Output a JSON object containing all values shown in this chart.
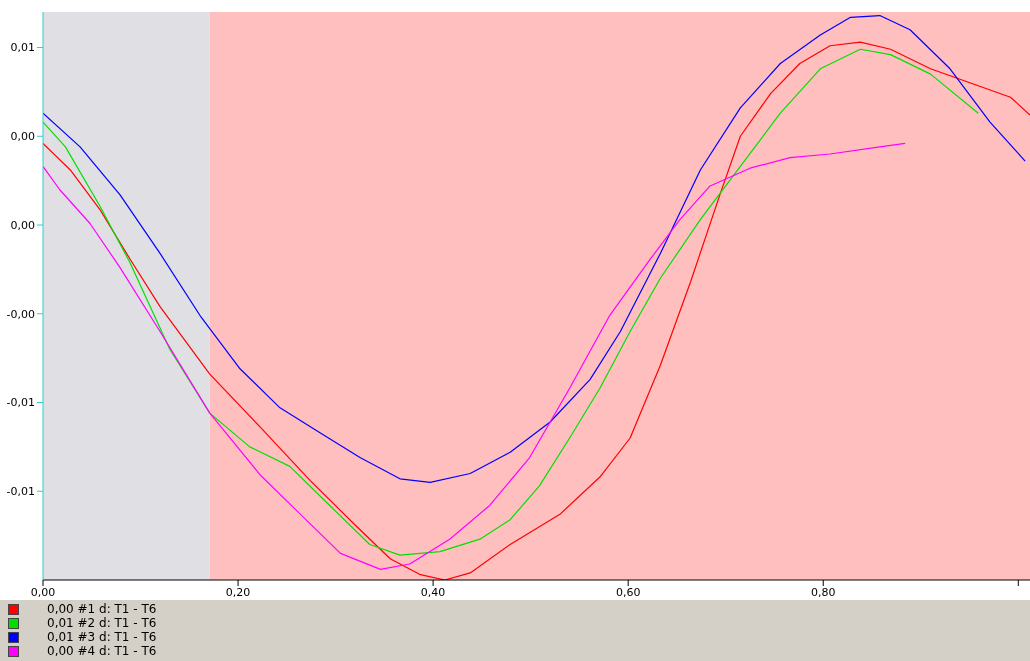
{
  "chart_data": {
    "type": "line",
    "xlim": [
      0,
      1.012
    ],
    "ylim": [
      -0.02,
      0.012
    ],
    "xticks": [
      {
        "value": 0,
        "label": "0,00"
      },
      {
        "value": 0.2,
        "label": "0,20"
      },
      {
        "value": 0.4,
        "label": "0,40"
      },
      {
        "value": 0.6,
        "label": "0,60"
      },
      {
        "value": 0.8,
        "label": "0,80"
      },
      {
        "value": 1,
        "label": null
      }
    ],
    "yticks": [
      {
        "value": 0.01,
        "label": "0,01"
      },
      {
        "value": 0.005,
        "label": "0,00"
      },
      {
        "value": 0,
        "label": "0,00"
      },
      {
        "value": -0.005,
        "label": "-0,00"
      },
      {
        "value": -0.01,
        "label": "-0,01"
      },
      {
        "value": -0.015,
        "label": "-0,01"
      }
    ],
    "grid": false,
    "legend": "bottom left",
    "marker": "none",
    "line_style": "solid",
    "bands": [
      {
        "axis": "x",
        "from": 0,
        "to": 0.171,
        "color": "#dfdfe4"
      },
      {
        "axis": "x",
        "from": 0.171,
        "to": 1.012,
        "color": "#ffbfbf"
      }
    ],
    "series": [
      {
        "name": "0,00 #1 d: T1 - T6",
        "color": "#ff0000",
        "x": [
          0,
          0.028,
          0.058,
          0.089,
          0.12,
          0.171,
          0.223,
          0.274,
          0.32,
          0.356,
          0.387,
          0.412,
          0.438,
          0.479,
          0.53,
          0.571,
          0.602,
          0.633,
          0.664,
          0.694,
          0.715,
          0.746,
          0.776,
          0.807,
          0.838,
          0.869,
          0.91,
          0.951,
          0.992,
          1.012
        ],
        "values": [
          0.0046,
          0.0031,
          0.0009,
          -0.0019,
          -0.0046,
          -0.0084,
          -0.0114,
          -0.0144,
          -0.0169,
          -0.0188,
          -0.0197,
          -0.02,
          -0.0196,
          -0.018,
          -0.0163,
          -0.0142,
          -0.012,
          -0.0079,
          -0.0032,
          0.0017,
          0.005,
          0.0074,
          0.0091,
          0.0101,
          0.0103,
          0.0099,
          0.0088,
          0.008,
          0.0072,
          0.0062
        ]
      },
      {
        "name": "0,01 #2 d: T1 - T6",
        "color": "#00e000",
        "x": [
          0,
          0.023,
          0.058,
          0.089,
          0.13,
          0.171,
          0.212,
          0.253,
          0.294,
          0.335,
          0.366,
          0.407,
          0.448,
          0.479,
          0.509,
          0.54,
          0.571,
          0.602,
          0.633,
          0.674,
          0.715,
          0.756,
          0.797,
          0.838,
          0.869,
          0.91,
          0.959
        ],
        "values": [
          0.0058,
          0.0044,
          0.0011,
          -0.0021,
          -0.007,
          -0.0106,
          -0.0125,
          -0.0136,
          -0.0158,
          -0.018,
          -0.0186,
          -0.0184,
          -0.0177,
          -0.0166,
          -0.0147,
          -0.012,
          -0.0092,
          -0.006,
          -0.003,
          0.0003,
          0.0033,
          0.0063,
          0.0088,
          0.0099,
          0.0096,
          0.0085,
          0.0063
        ]
      },
      {
        "name": "0,01 #3 d: T1 - T6",
        "color": "#0000ff",
        "x": [
          0,
          0.038,
          0.079,
          0.12,
          0.161,
          0.202,
          0.243,
          0.284,
          0.325,
          0.366,
          0.397,
          0.438,
          0.479,
          0.52,
          0.561,
          0.592,
          0.633,
          0.674,
          0.715,
          0.756,
          0.797,
          0.828,
          0.858,
          0.889,
          0.93,
          0.971,
          1.007
        ],
        "values": [
          0.0063,
          0.0044,
          0.0017,
          -0.0016,
          -0.0051,
          -0.0081,
          -0.0103,
          -0.0117,
          -0.0131,
          -0.0143,
          -0.0145,
          -0.014,
          -0.0128,
          -0.0111,
          -0.0087,
          -0.006,
          -0.0016,
          0.0031,
          0.0066,
          0.0091,
          0.0107,
          0.0117,
          0.0118,
          0.011,
          0.0088,
          0.0058,
          0.0036
        ]
      },
      {
        "name": "0,00 #4 d: T1 - T6",
        "color": "#ff00ff",
        "x": [
          0,
          0.017,
          0.048,
          0.079,
          0.12,
          0.171,
          0.223,
          0.264,
          0.305,
          0.346,
          0.376,
          0.417,
          0.458,
          0.499,
          0.54,
          0.581,
          0.623,
          0.653,
          0.684,
          0.725,
          0.766,
          0.807,
          0.858,
          0.884
        ],
        "values": [
          0.0033,
          0.002,
          0.0001,
          -0.0024,
          -0.006,
          -0.0106,
          -0.0141,
          -0.0163,
          -0.0185,
          -0.0194,
          -0.0191,
          -0.0177,
          -0.0158,
          -0.0131,
          -0.0092,
          -0.0051,
          -0.0019,
          0.0003,
          0.0022,
          0.0032,
          0.0038,
          0.004,
          0.0044,
          0.0046
        ]
      }
    ]
  }
}
